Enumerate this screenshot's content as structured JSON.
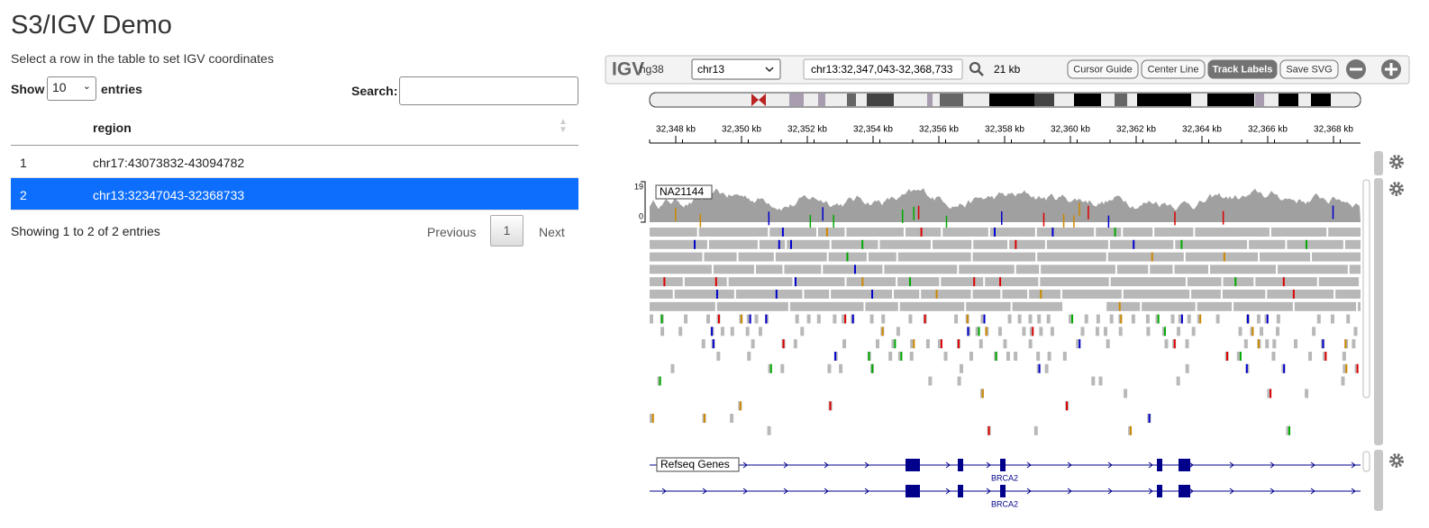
{
  "header": {
    "title": "S3/IGV Demo",
    "subtitle": "Select a row in the table to set IGV coordinates"
  },
  "table_controls": {
    "show_label": "Show",
    "page_size": "10",
    "entries_label": "entries",
    "search_label": "Search:"
  },
  "table": {
    "column": "region",
    "rows": [
      {
        "number": "1",
        "region": "chr17:43073832-43094782",
        "selected": false
      },
      {
        "number": "2",
        "region": "chr13:32347043-32368733",
        "selected": true
      }
    ]
  },
  "table_footer": {
    "info": "Showing 1 to 2 of 2 entries",
    "previous": "Previous",
    "page": "1",
    "next": "Next"
  },
  "igv": {
    "logo": "IGV",
    "genome": "hg38",
    "chromosome": "chr13",
    "locus": "chr13:32,347,043-32,368,733",
    "span": "21 kb",
    "buttons": [
      "Cursor Guide",
      "Center Line",
      "Track Labels",
      "Save SVG"
    ],
    "ruler_ticks": [
      "32,348 kb",
      "32,350 kb",
      "32,352 kb",
      "32,354 kb",
      "32,356 kb",
      "32,358 kb",
      "32,360 kb",
      "32,362 kb",
      "32,364 kb",
      "32,366 kb",
      "32,368 kb"
    ],
    "alignment_track": {
      "name": "NA21144",
      "scale_max": "19",
      "scale_min": "0"
    },
    "gene_track": {
      "name": "Refseq Genes",
      "gene_labels": [
        "BRCA2",
        "BRCA2"
      ]
    }
  }
}
